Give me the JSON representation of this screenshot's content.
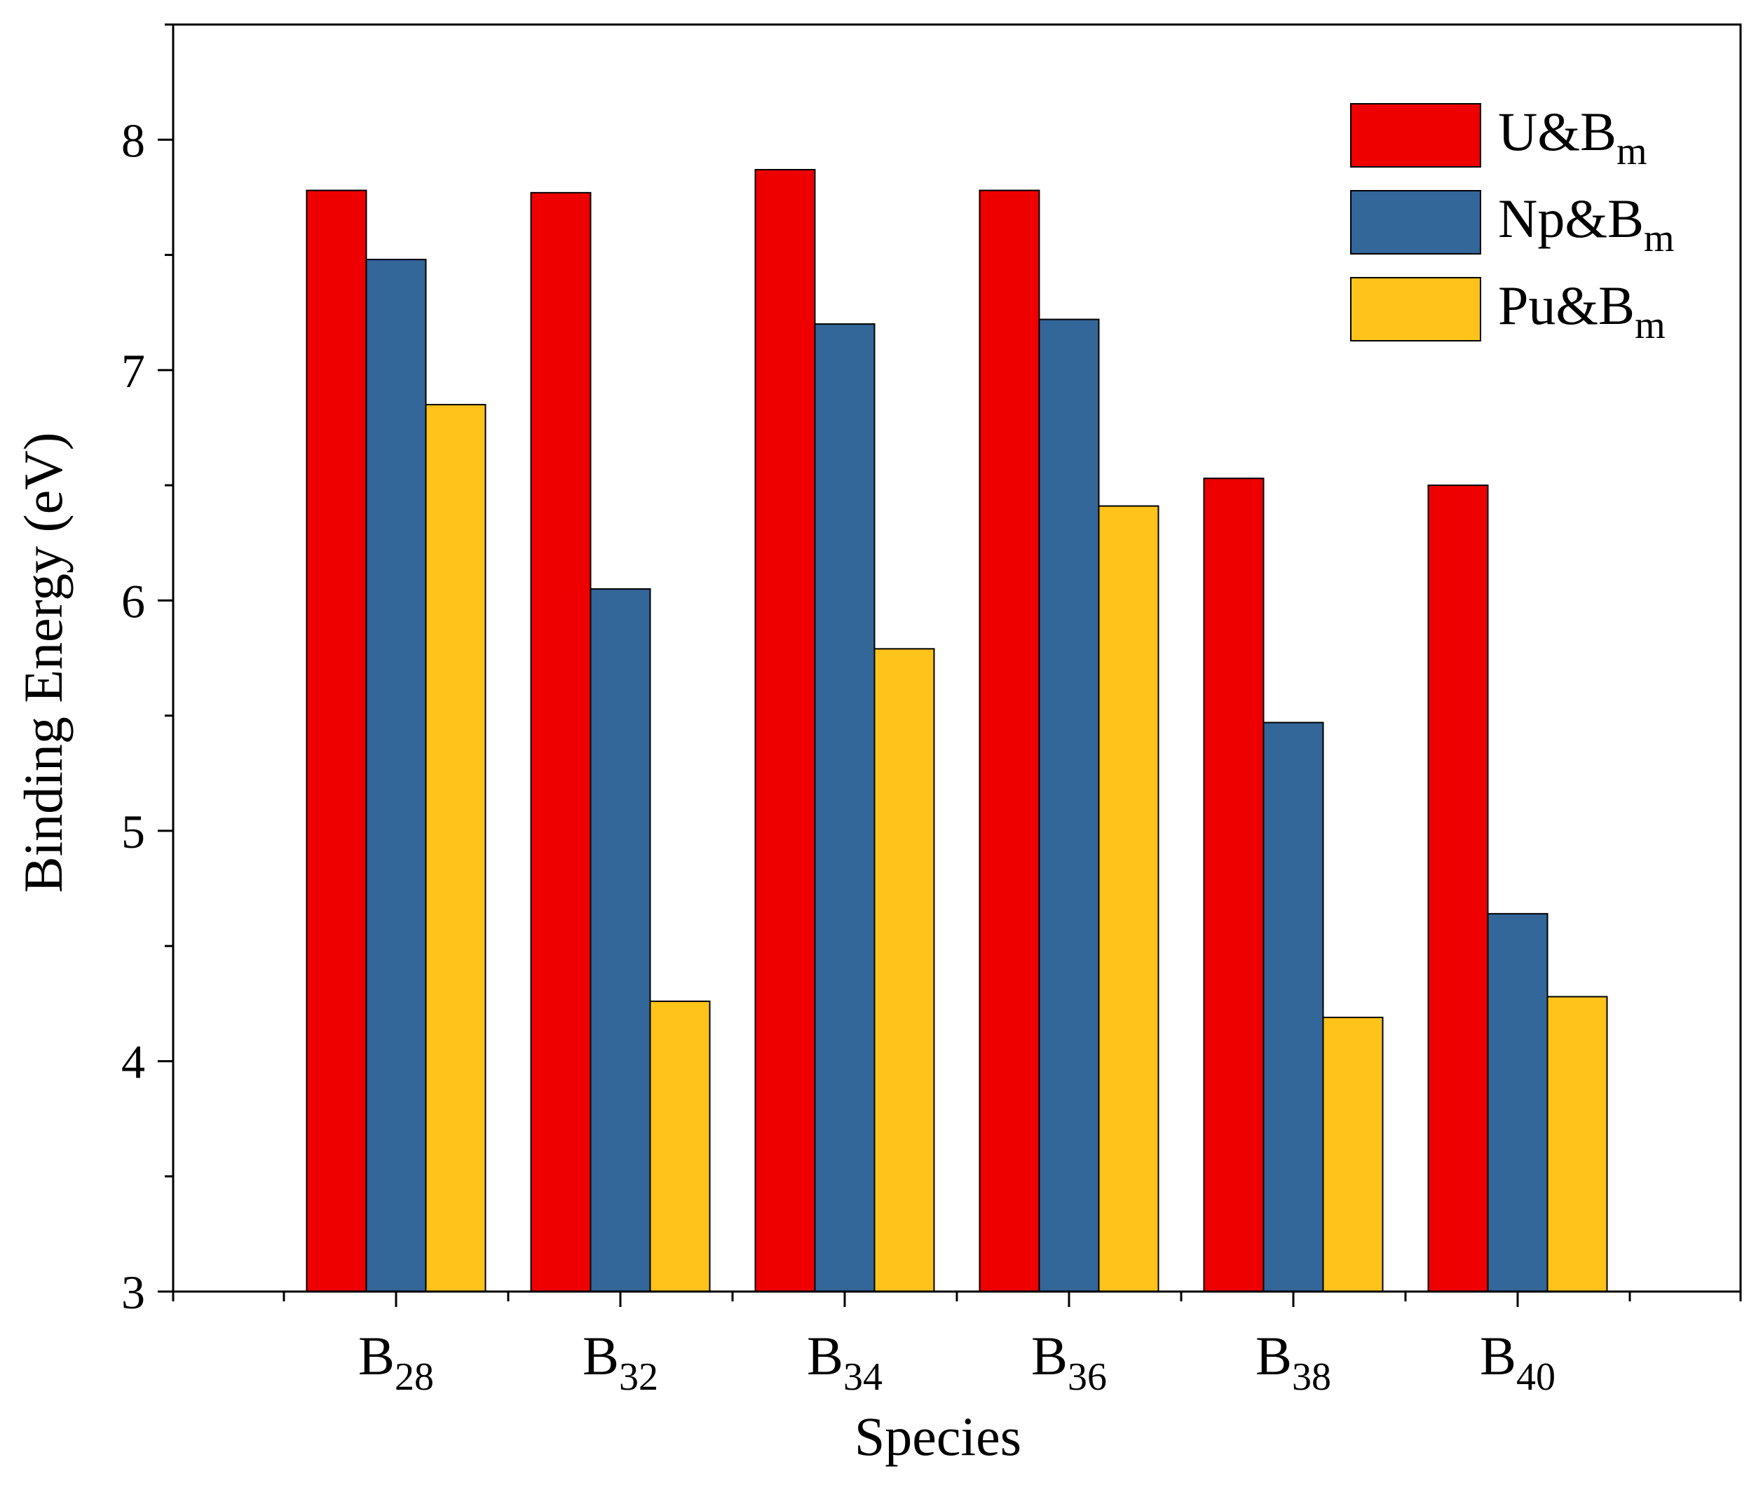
{
  "chart_data": {
    "type": "bar",
    "title": "",
    "xlabel": "Species",
    "ylabel": "Binding Energy (eV)",
    "ylim": [
      3,
      8.5
    ],
    "yticks": [
      3,
      4,
      5,
      6,
      7,
      8
    ],
    "categories": [
      {
        "base": "B",
        "sub": "28"
      },
      {
        "base": "B",
        "sub": "32"
      },
      {
        "base": "B",
        "sub": "34"
      },
      {
        "base": "B",
        "sub": "36"
      },
      {
        "base": "B",
        "sub": "38"
      },
      {
        "base": "B",
        "sub": "40"
      }
    ],
    "series": [
      {
        "name": "U&B",
        "sub": "m",
        "color": "#ee0000",
        "values": [
          7.78,
          7.77,
          7.87,
          7.78,
          6.53,
          6.5
        ]
      },
      {
        "name": "Np&B",
        "sub": "m",
        "color": "#336699",
        "values": [
          7.48,
          6.05,
          7.2,
          7.22,
          5.47,
          4.64
        ]
      },
      {
        "name": "Pu&B",
        "sub": "m",
        "color": "#ffc31a",
        "values": [
          6.85,
          4.26,
          5.79,
          6.41,
          4.19,
          4.28
        ]
      }
    ],
    "legend_position": "top-right",
    "grid": false
  }
}
